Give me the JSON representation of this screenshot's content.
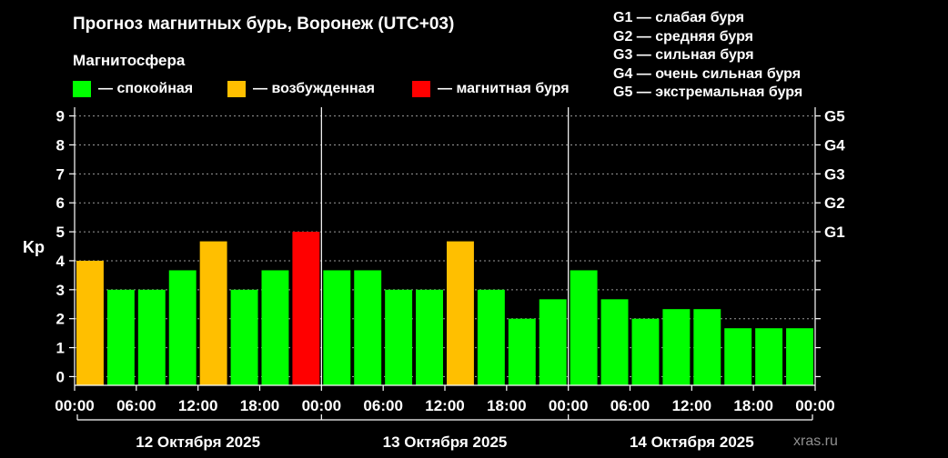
{
  "header": {
    "title": "Прогноз магнитных бурь, Воронеж (UTC+03)",
    "subtitle": "Магнитосфера"
  },
  "legend": [
    {
      "label": "— спокойная",
      "color": "#00ff00"
    },
    {
      "label": "— возбужденная",
      "color": "#ffbf00"
    },
    {
      "label": "— магнитная буря",
      "color": "#ff0000"
    }
  ],
  "storm_legend": [
    "G1 — слабая буря",
    "G2 — средняя буря",
    "G3 — сильная буря",
    "G4 — очень сильная буря",
    "G5 — экстремальная буря"
  ],
  "watermark": "xras.ru",
  "chart_data": {
    "type": "bar",
    "ylabel": "Kp",
    "ylim": [
      -0.3,
      9.3
    ],
    "yticks": [
      0,
      1,
      2,
      3,
      4,
      5,
      6,
      7,
      8,
      9
    ],
    "right_ticks": [
      {
        "value": 5,
        "label": "G1"
      },
      {
        "value": 6,
        "label": "G2"
      },
      {
        "value": 7,
        "label": "G3"
      },
      {
        "value": 8,
        "label": "G4"
      },
      {
        "value": 9,
        "label": "G5"
      }
    ],
    "grid": true,
    "xtick_labels": [
      "00:00",
      "06:00",
      "12:00",
      "18:00",
      "00:00",
      "06:00",
      "12:00",
      "18:00",
      "00:00",
      "06:00",
      "12:00",
      "18:00",
      "00:00"
    ],
    "days": [
      "12 Октября 2025",
      "13 Октября 2025",
      "14 Октября 2025"
    ],
    "values": [
      4.0,
      3.0,
      3.0,
      3.67,
      4.67,
      3.0,
      3.67,
      5.0,
      3.67,
      3.67,
      3.0,
      3.0,
      4.67,
      3.0,
      2.0,
      2.67,
      3.67,
      2.67,
      2.0,
      2.33,
      2.33,
      1.67,
      1.67,
      1.67
    ],
    "colors": [
      "#ffbf00",
      "#00ff00",
      "#00ff00",
      "#00ff00",
      "#ffbf00",
      "#00ff00",
      "#00ff00",
      "#ff0000",
      "#00ff00",
      "#00ff00",
      "#00ff00",
      "#00ff00",
      "#ffbf00",
      "#00ff00",
      "#00ff00",
      "#00ff00",
      "#00ff00",
      "#00ff00",
      "#00ff00",
      "#00ff00",
      "#00ff00",
      "#00ff00",
      "#00ff00",
      "#00ff00"
    ]
  }
}
